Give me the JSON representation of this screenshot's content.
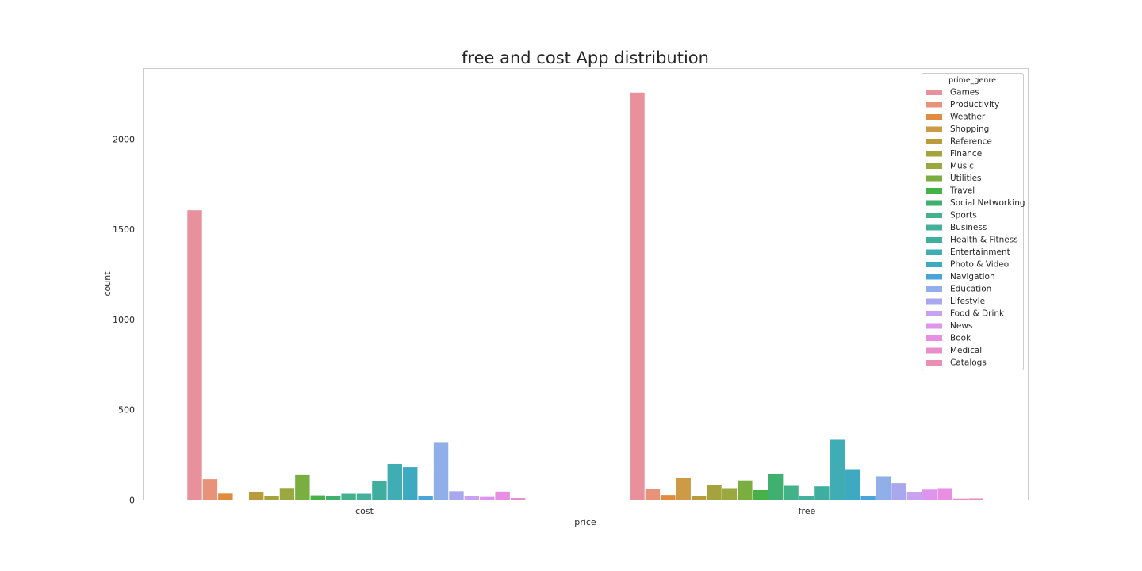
{
  "chart_data": {
    "type": "bar",
    "title": "free and cost App distribution",
    "xlabel": "price",
    "ylabel": "count",
    "categories": [
      "cost",
      "free"
    ],
    "ylim": [
      0,
      2390
    ],
    "yticks": [
      0,
      500,
      1000,
      1500,
      2000
    ],
    "grid": false,
    "legend": {
      "title": "prime_genre",
      "placement": "top-right"
    },
    "series": [
      {
        "name": "Games",
        "color": "#e8919c",
        "values": [
          1605,
          2257
        ]
      },
      {
        "name": "Productivity",
        "color": "#e8927a",
        "values": [
          116,
          62
        ]
      },
      {
        "name": "Weather",
        "color": "#e08b3e",
        "values": [
          36,
          28
        ]
      },
      {
        "name": "Shopping",
        "color": "#cd9a46",
        "values": [
          1,
          121
        ]
      },
      {
        "name": "Reference",
        "color": "#b89b3a",
        "values": [
          44,
          20
        ]
      },
      {
        "name": "Finance",
        "color": "#a6a33e",
        "values": [
          22,
          84
        ]
      },
      {
        "name": "Music",
        "color": "#9aa93f",
        "values": [
          67,
          66
        ]
      },
      {
        "name": "Utilities",
        "color": "#7aae40",
        "values": [
          139,
          109
        ]
      },
      {
        "name": "Travel",
        "color": "#46b049",
        "values": [
          26,
          55
        ]
      },
      {
        "name": "Social Networking",
        "color": "#3fb06f",
        "values": [
          24,
          143
        ]
      },
      {
        "name": "Sports",
        "color": "#43b18a",
        "values": [
          35,
          79
        ]
      },
      {
        "name": "Business",
        "color": "#44b09c",
        "values": [
          35,
          21
        ]
      },
      {
        "name": "Health & Fitness",
        "color": "#40ae9f",
        "values": [
          104,
          76
        ]
      },
      {
        "name": "Entertainment",
        "color": "#40acb4",
        "values": [
          200,
          334
        ]
      },
      {
        "name": "Photo & Video",
        "color": "#3eaac2",
        "values": [
          182,
          167
        ]
      },
      {
        "name": "Navigation",
        "color": "#4aa5d6",
        "values": [
          24,
          20
        ]
      },
      {
        "name": "Education",
        "color": "#90aee8",
        "values": [
          321,
          132
        ]
      },
      {
        "name": "Lifestyle",
        "color": "#a9a8ec",
        "values": [
          49,
          94
        ]
      },
      {
        "name": "Food & Drink",
        "color": "#c6a2f0",
        "values": [
          21,
          43
        ]
      },
      {
        "name": "News",
        "color": "#dd94ec",
        "values": [
          17,
          58
        ]
      },
      {
        "name": "Book",
        "color": "#e88fe4",
        "values": [
          47,
          66
        ]
      },
      {
        "name": "Medical",
        "color": "#e78fca",
        "values": [
          11,
          8
        ]
      },
      {
        "name": "Catalogs",
        "color": "#ea8fb1",
        "values": [
          1,
          9
        ]
      }
    ]
  }
}
